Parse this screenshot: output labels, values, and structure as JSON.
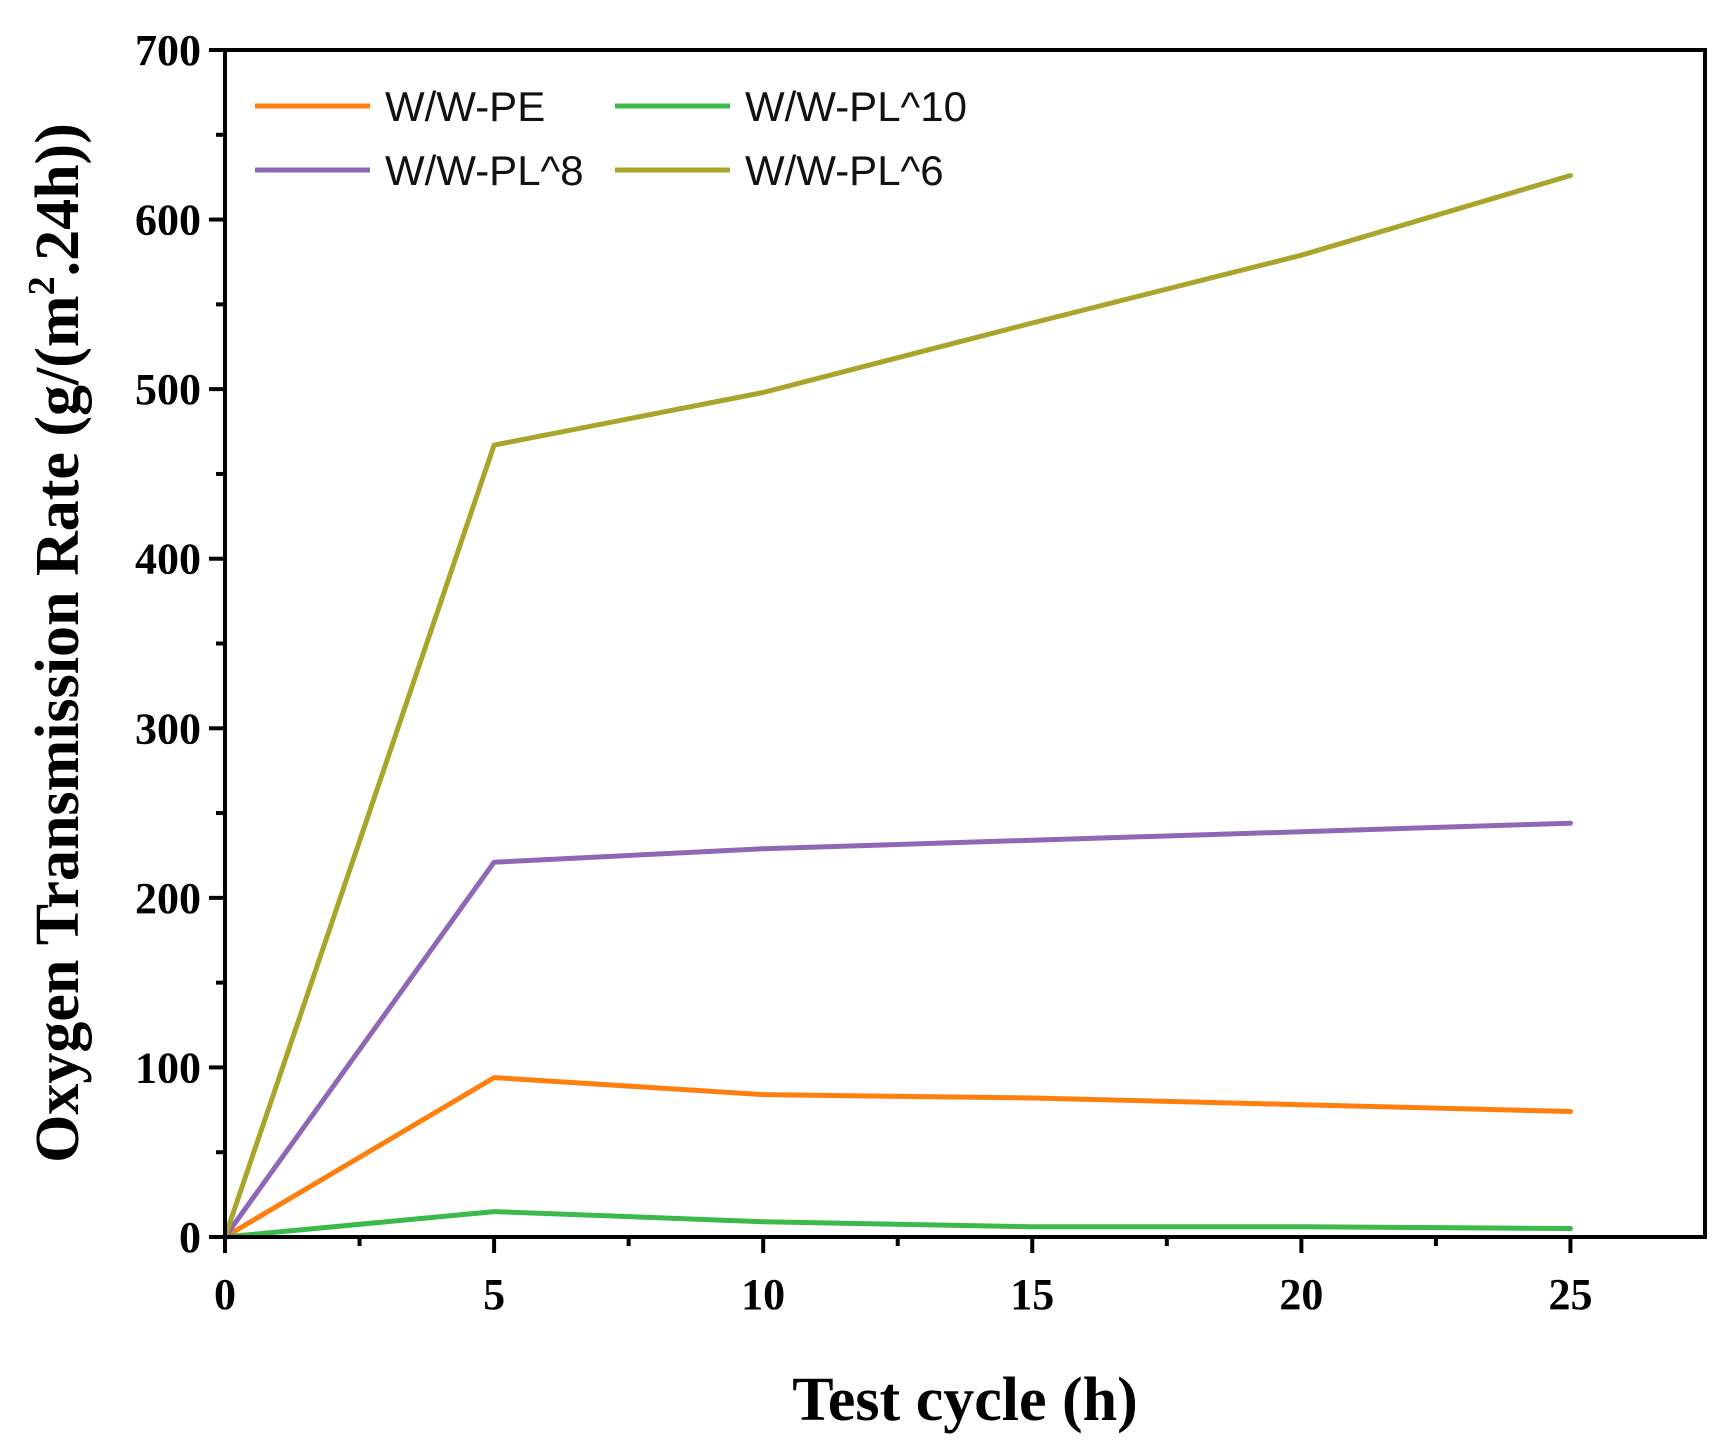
{
  "chart_data": {
    "type": "line",
    "xlabel": "Test cycle (h)",
    "ylabel_main": "Oxygen Transmission Rate (g/(m",
    "ylabel_sup": "2",
    "ylabel_tail": ".24h))",
    "xlim": [
      0,
      27.5
    ],
    "ylim": [
      0,
      700
    ],
    "x_ticks": [
      0,
      5,
      10,
      15,
      20,
      25
    ],
    "x_tick_labels": [
      "0",
      "5",
      "10",
      "15",
      "20",
      "25"
    ],
    "x_minor_ticks": [
      2.5,
      7.5,
      12.5,
      17.5,
      22.5
    ],
    "y_ticks": [
      0,
      100,
      200,
      300,
      400,
      500,
      600,
      700
    ],
    "y_tick_labels": [
      "0",
      "100",
      "200",
      "300",
      "400",
      "500",
      "600",
      "700"
    ],
    "y_minor_ticks": [
      50,
      150,
      250,
      350,
      450,
      550,
      650
    ],
    "x": [
      0,
      5,
      10,
      15,
      20,
      25
    ],
    "series": [
      {
        "name": "W/W-PE",
        "color": "#ff7f0e",
        "values": [
          0,
          94,
          84,
          82,
          78,
          74
        ]
      },
      {
        "name": "W/W-PL^10",
        "color": "#3cb94b",
        "values": [
          0,
          15,
          9,
          6,
          6,
          5
        ]
      },
      {
        "name": "W/W-PL^8",
        "color": "#8e67b5",
        "values": [
          0,
          221,
          229,
          234,
          239,
          244
        ]
      },
      {
        "name": "W/W-PL^6",
        "color": "#a8a52a",
        "values": [
          0,
          467,
          498,
          539,
          579,
          626
        ]
      }
    ],
    "legend_position": "top-left",
    "grid": false
  }
}
